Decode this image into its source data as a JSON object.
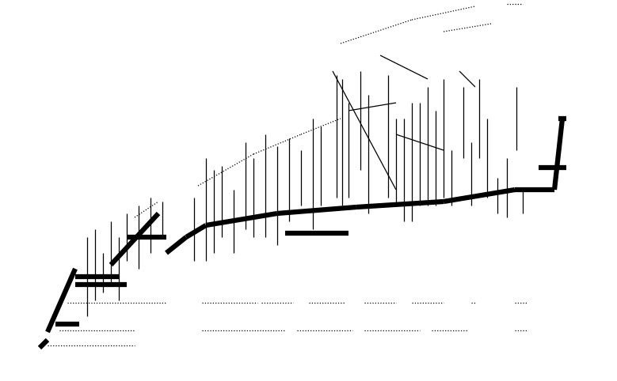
{
  "chart_data": {
    "type": "segments",
    "tick_labels": false,
    "xlim": [
      0,
      779
    ],
    "ylim": [
      482,
      0
    ],
    "series": [
      {
        "type": "line",
        "line_style": "dotted",
        "color": "#000000",
        "segments": [
          [
            60,
            437,
            170,
            437
          ],
          [
            75,
            418,
            170,
            418
          ],
          [
            255,
            418,
            360,
            418
          ],
          [
            375,
            418,
            445,
            418
          ],
          [
            460,
            418,
            530,
            418
          ],
          [
            545,
            418,
            590,
            418
          ],
          [
            650,
            418,
            665,
            418
          ],
          [
            85,
            383,
            210,
            383
          ],
          [
            255,
            383,
            325,
            383
          ],
          [
            330,
            383,
            370,
            383
          ],
          [
            390,
            383,
            435,
            383
          ],
          [
            460,
            383,
            500,
            383
          ],
          [
            520,
            383,
            560,
            383
          ],
          [
            595,
            383,
            600,
            383
          ],
          [
            650,
            383,
            665,
            383
          ],
          [
            250,
            235,
            320,
            195
          ],
          [
            320,
            195,
            380,
            170
          ],
          [
            380,
            170,
            430,
            150
          ],
          [
            430,
            55,
            520,
            25
          ],
          [
            520,
            25,
            600,
            8
          ],
          [
            640,
            5,
            660,
            5
          ],
          [
            560,
            40,
            620,
            30
          ],
          [
            170,
            275,
            200,
            255
          ]
        ]
      },
      {
        "type": "line",
        "line_style": "solid",
        "color": "#000000",
        "segments": [
          [
            110,
            300,
            110,
            400
          ],
          [
            120,
            290,
            120,
            380
          ],
          [
            130,
            320,
            130,
            370
          ],
          [
            140,
            280,
            140,
            360
          ],
          [
            150,
            300,
            150,
            380
          ],
          [
            160,
            270,
            160,
            330
          ],
          [
            175,
            260,
            175,
            340
          ],
          [
            190,
            250,
            190,
            320
          ],
          [
            205,
            255,
            205,
            300
          ],
          [
            245,
            250,
            245,
            330
          ],
          [
            260,
            200,
            260,
            330
          ],
          [
            270,
            215,
            270,
            320
          ],
          [
            280,
            210,
            280,
            300
          ],
          [
            295,
            240,
            295,
            320
          ],
          [
            310,
            180,
            310,
            290
          ],
          [
            320,
            200,
            320,
            300
          ],
          [
            335,
            170,
            335,
            300
          ],
          [
            350,
            185,
            350,
            310
          ],
          [
            365,
            175,
            365,
            280
          ],
          [
            380,
            190,
            380,
            260
          ],
          [
            395,
            150,
            395,
            290
          ],
          [
            405,
            160,
            405,
            260
          ],
          [
            425,
            95,
            425,
            250
          ],
          [
            432,
            100,
            432,
            260
          ],
          [
            440,
            130,
            440,
            250
          ],
          [
            455,
            90,
            455,
            215
          ],
          [
            465,
            120,
            465,
            270
          ],
          [
            490,
            95,
            490,
            250
          ],
          [
            500,
            150,
            500,
            260
          ],
          [
            510,
            150,
            510,
            280
          ],
          [
            520,
            130,
            520,
            280
          ],
          [
            530,
            130,
            530,
            260
          ],
          [
            540,
            110,
            540,
            260
          ],
          [
            550,
            140,
            550,
            260
          ],
          [
            560,
            100,
            560,
            250
          ],
          [
            570,
            190,
            570,
            260
          ],
          [
            585,
            110,
            585,
            200
          ],
          [
            595,
            180,
            595,
            260
          ],
          [
            605,
            100,
            605,
            200
          ],
          [
            615,
            150,
            615,
            250
          ],
          [
            628,
            225,
            628,
            270
          ],
          [
            640,
            200,
            640,
            275
          ],
          [
            652,
            110,
            652,
            190
          ],
          [
            660,
            240,
            660,
            270
          ],
          [
            420,
            90,
            500,
            240
          ],
          [
            480,
            70,
            540,
            100
          ],
          [
            500,
            170,
            560,
            190
          ],
          [
            580,
            90,
            600,
            110
          ],
          [
            440,
            140,
            500,
            130
          ]
        ]
      },
      {
        "type": "band",
        "line_style": "solid",
        "color": "#000000",
        "segments": [
          [
            50,
            440,
            60,
            430
          ],
          [
            60,
            420,
            95,
            340
          ],
          [
            95,
            360,
            160,
            360
          ],
          [
            95,
            350,
            150,
            350
          ],
          [
            140,
            335,
            200,
            270
          ],
          [
            160,
            300,
            210,
            300
          ],
          [
            210,
            320,
            235,
            300
          ],
          [
            235,
            300,
            260,
            285
          ],
          [
            260,
            285,
            350,
            270
          ],
          [
            350,
            270,
            450,
            262
          ],
          [
            450,
            262,
            560,
            255
          ],
          [
            560,
            255,
            650,
            240
          ],
          [
            360,
            295,
            440,
            295
          ],
          [
            650,
            240,
            700,
            240
          ],
          [
            680,
            212,
            715,
            212
          ],
          [
            700,
            240,
            710,
            150
          ],
          [
            705,
            150,
            715,
            150
          ],
          [
            70,
            410,
            100,
            410
          ]
        ]
      }
    ]
  }
}
